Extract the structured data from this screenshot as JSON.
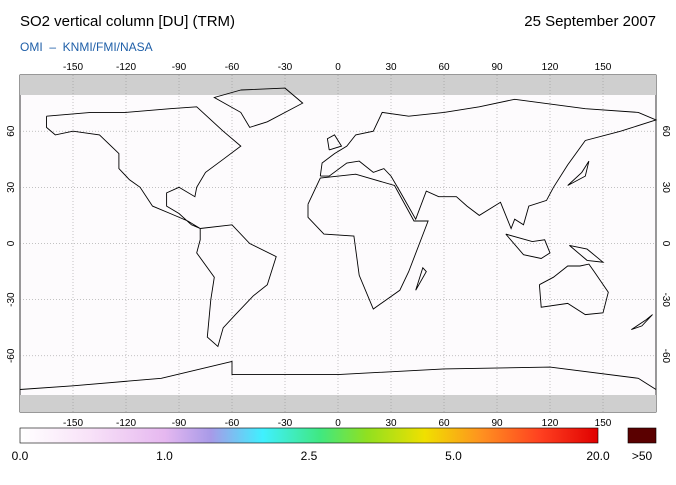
{
  "header": {
    "title": "SO2 vertical column [DU] (TRM)",
    "date": "25 September 2007",
    "credit": "OMI  –  KNMI/FMI/NASA"
  },
  "map": {
    "lon_ticks": [
      -150,
      -120,
      -90,
      -60,
      -30,
      0,
      30,
      60,
      90,
      120,
      150
    ],
    "lat_ticks": [
      60,
      30,
      0,
      -30,
      -60
    ]
  },
  "colorbar": {
    "labels": [
      "0.0",
      "1.0",
      "2.5",
      "5.0",
      "20.0"
    ],
    "overflow_label": ">50"
  }
}
